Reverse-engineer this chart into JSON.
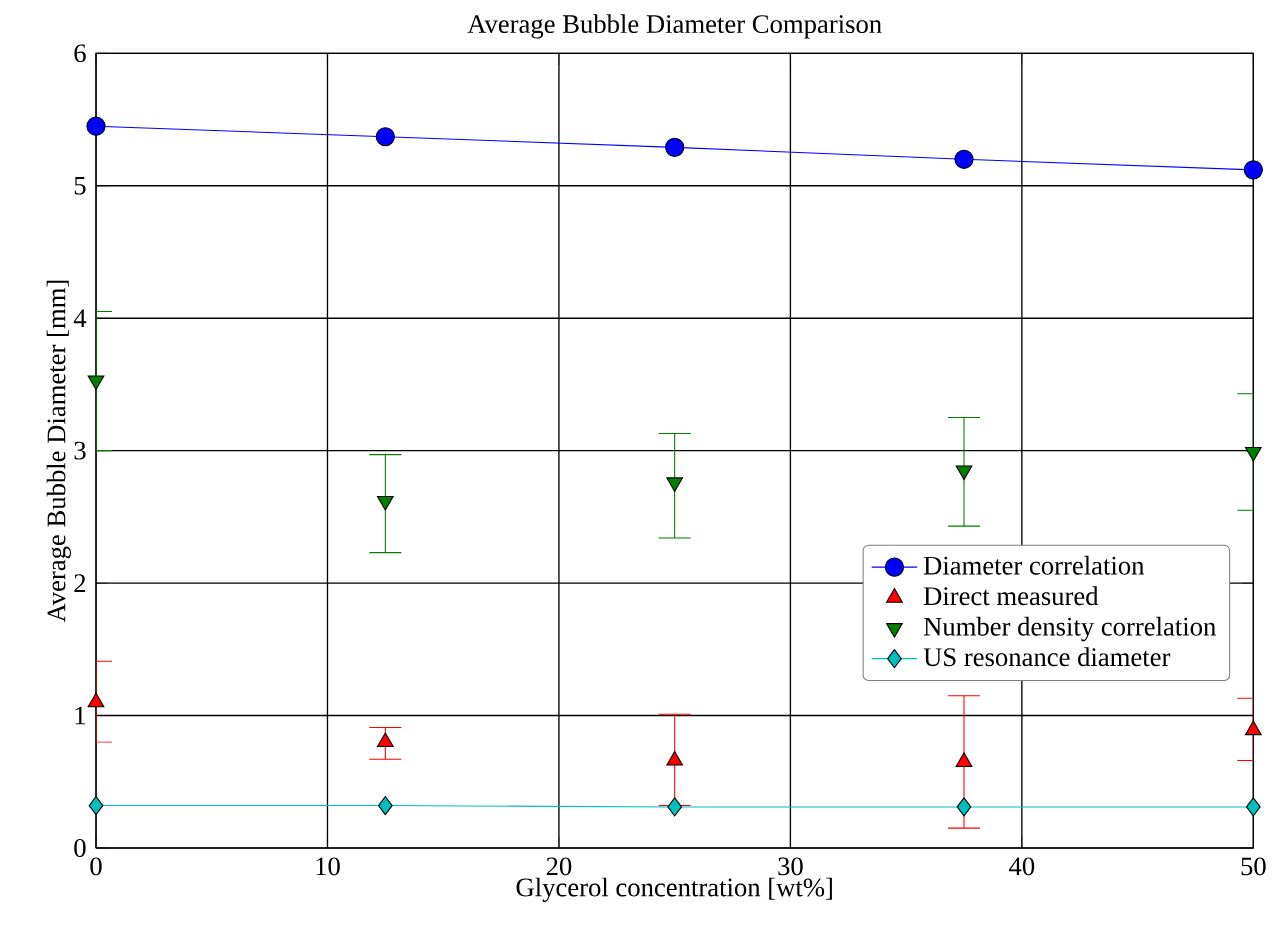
{
  "chart_data": {
    "type": "line",
    "title": "Average Bubble Diameter Comparison",
    "xlabel": "Glycerol concentration [wt%]",
    "ylabel": "Average Bubble Diameter [mm]",
    "x": [
      0,
      12.5,
      25,
      37.5,
      50
    ],
    "xlim": [
      0,
      50
    ],
    "xticks": [
      0,
      10,
      20,
      30,
      40,
      50
    ],
    "ylim": [
      0,
      6
    ],
    "yticks": [
      0,
      1,
      2,
      3,
      4,
      5,
      6
    ],
    "grid": true,
    "legend": "right",
    "series": [
      {
        "name": "Diameter correlation",
        "marker": "circle",
        "color": "#0000ff",
        "values": [
          5.45,
          5.37,
          5.29,
          5.2,
          5.12
        ]
      },
      {
        "name": "Direct measured",
        "type": "scatter",
        "marker": "triangle",
        "color": "#ff0000",
        "values": [
          1.1,
          0.8,
          0.66,
          0.65,
          0.89
        ],
        "errors": [
          [
            0.8,
            1.41
          ],
          [
            0.67,
            0.91
          ],
          [
            0.32,
            1.01
          ],
          [
            0.15,
            1.15
          ],
          [
            0.66,
            1.13
          ]
        ]
      },
      {
        "name": "Number density correlation",
        "type": "scatter",
        "marker": "triangle-down",
        "color": "#007f00",
        "values": [
          3.53,
          2.62,
          2.76,
          2.85,
          2.99
        ],
        "errors": [
          [
            3.0,
            4.05
          ],
          [
            2.23,
            2.97
          ],
          [
            2.34,
            3.13
          ],
          [
            2.43,
            3.25
          ],
          [
            2.55,
            3.43
          ]
        ]
      },
      {
        "name": "US resonance diameter",
        "marker": "diamond",
        "color": "#00bfbf",
        "values": [
          0.32,
          0.32,
          0.31,
          0.31,
          0.31
        ]
      }
    ]
  }
}
